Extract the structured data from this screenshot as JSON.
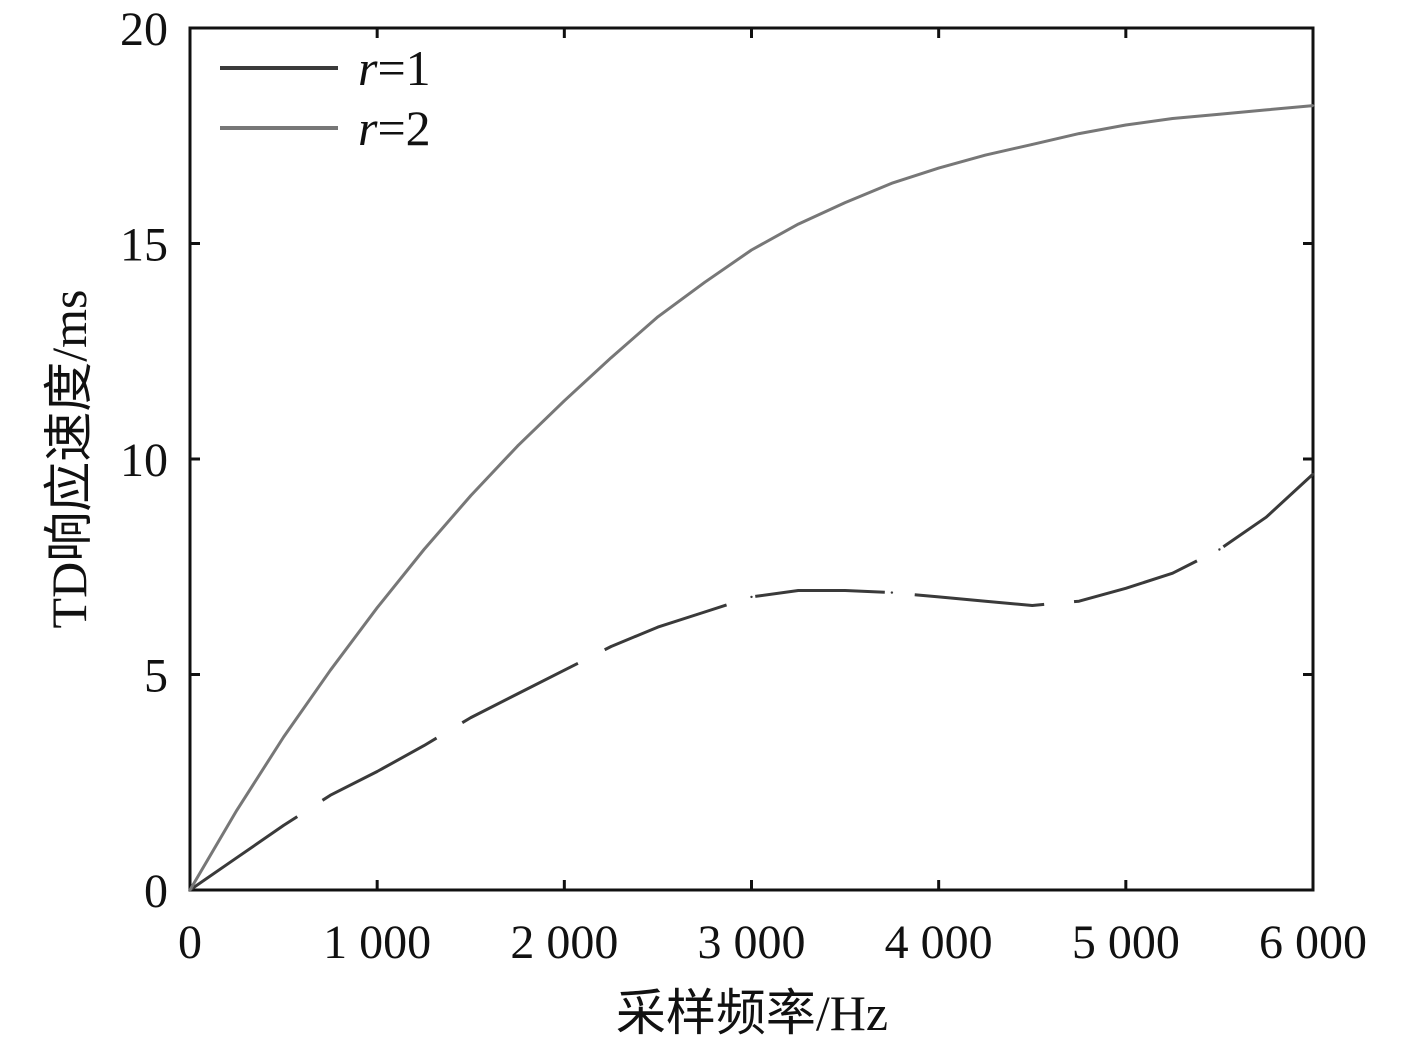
{
  "chart_data": {
    "type": "line",
    "title": "",
    "xlabel": "采样频率/Hz",
    "ylabel": "TD响应速度/ms",
    "xlim": [
      0,
      6000
    ],
    "ylim": [
      0,
      20
    ],
    "xticks": [
      0,
      1000,
      2000,
      3000,
      4000,
      5000,
      6000
    ],
    "xtick_labels": [
      "0",
      "1 000",
      "2 000",
      "3 000",
      "4 000",
      "5 000",
      "6 000"
    ],
    "yticks": [
      0,
      5,
      10,
      15,
      20
    ],
    "ytick_labels": [
      "0",
      "5",
      "10",
      "15",
      "20"
    ],
    "grid": false,
    "legend_position": "top-left",
    "series": [
      {
        "name": "r=1",
        "name_italic": "r",
        "name_rest": "=1",
        "color": "#3a3a3a",
        "style": "dashed",
        "x": [
          0,
          250,
          500,
          750,
          1000,
          1250,
          1500,
          1750,
          2000,
          2250,
          2500,
          2750,
          3000,
          3250,
          3500,
          3750,
          4000,
          4250,
          4500,
          4750,
          5000,
          5250,
          5500,
          5750,
          6000
        ],
        "y": [
          0,
          0.75,
          1.5,
          2.2,
          2.75,
          3.35,
          4.0,
          4.55,
          5.1,
          5.65,
          6.1,
          6.45,
          6.8,
          6.95,
          6.95,
          6.9,
          6.8,
          6.7,
          6.6,
          6.7,
          7.0,
          7.35,
          7.9,
          8.65,
          9.65
        ]
      },
      {
        "name": "r=2",
        "name_italic": "r",
        "name_rest": "=2",
        "color": "#777777",
        "style": "solid",
        "x": [
          0,
          250,
          500,
          750,
          1000,
          1250,
          1500,
          1750,
          2000,
          2250,
          2500,
          2750,
          3000,
          3250,
          3500,
          3750,
          4000,
          4250,
          4500,
          4750,
          5000,
          5250,
          5500,
          5750,
          6000
        ],
        "y": [
          0,
          1.85,
          3.55,
          5.1,
          6.55,
          7.9,
          9.15,
          10.3,
          11.35,
          12.35,
          13.3,
          14.1,
          14.85,
          15.45,
          15.95,
          16.4,
          16.75,
          17.05,
          17.3,
          17.55,
          17.75,
          17.9,
          18.0,
          18.1,
          18.2
        ]
      }
    ]
  }
}
